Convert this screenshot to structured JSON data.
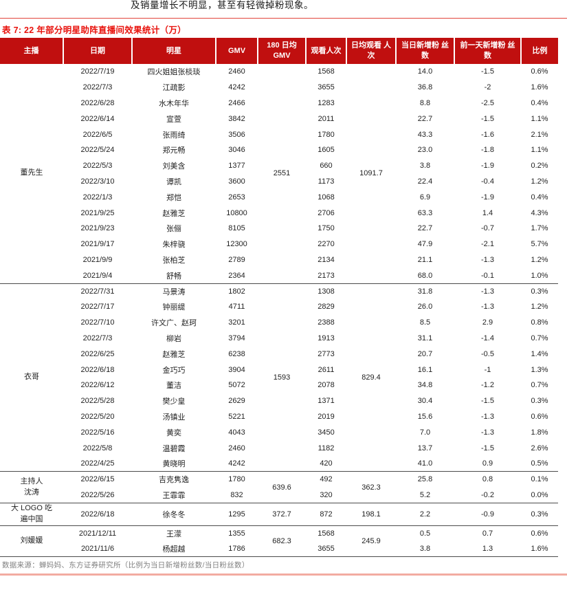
{
  "page": {
    "top_text": "及销量增长不明显，甚至有轻微掉粉现象。",
    "title": "表 7: 22 年部分明星助阵直播间效果统计（万）",
    "footer": "数据来源：蝉妈妈、东方证券研究所（比例为当日新增粉丝数/当日粉丝数）"
  },
  "colors": {
    "header_bg": "#c00f0f",
    "title_red": "#e8120c",
    "top_rule": "#e2443a",
    "bottom_rule": "#f2aba1",
    "separator": "#4a4a4a",
    "footer_gray": "#808080"
  },
  "table": {
    "columns": [
      "主播",
      "日期",
      "明星",
      "GMV",
      "180 日均 GMV",
      "观看人次",
      "日均观看 人次",
      "当日新增粉 丝数",
      "前一天新增粉 丝数",
      "比例"
    ],
    "groups": [
      {
        "host": "董先生",
        "avg_gmv_180d": "2551",
        "avg_viewers": "1091.7",
        "rows": [
          [
            "2022/7/19",
            "四火姐姐张棪琰",
            "2460",
            "1568",
            "14.0",
            "-1.5",
            "0.6%"
          ],
          [
            "2022/7/3",
            "江疏影",
            "4242",
            "3655",
            "36.8",
            "-2",
            "1.6%"
          ],
          [
            "2022/6/28",
            "水木年华",
            "2466",
            "1283",
            "8.8",
            "-2.5",
            "0.4%"
          ],
          [
            "2022/6/14",
            "宣萱",
            "3842",
            "2011",
            "22.7",
            "-1.5",
            "1.1%"
          ],
          [
            "2022/6/5",
            "张雨绮",
            "3506",
            "1780",
            "43.3",
            "-1.6",
            "2.1%"
          ],
          [
            "2022/5/24",
            "郑元畅",
            "3046",
            "1605",
            "23.0",
            "-1.8",
            "1.1%"
          ],
          [
            "2022/5/3",
            "刘美含",
            "1377",
            "660",
            "3.8",
            "-1.9",
            "0.2%"
          ],
          [
            "2022/3/10",
            "谭凯",
            "3600",
            "1173",
            "22.4",
            "-0.4",
            "1.2%"
          ],
          [
            "2022/1/3",
            "郑恺",
            "2653",
            "1068",
            "6.9",
            "-1.9",
            "0.4%"
          ],
          [
            "2021/9/25",
            "赵雅芝",
            "10800",
            "2706",
            "63.3",
            "1.4",
            "4.3%"
          ],
          [
            "2021/9/23",
            "张俪",
            "8105",
            "1750",
            "22.7",
            "-0.7",
            "1.7%"
          ],
          [
            "2021/9/17",
            "朱梓骁",
            "12300",
            "2270",
            "47.9",
            "-2.1",
            "5.7%"
          ],
          [
            "2021/9/9",
            "张柏芝",
            "2789",
            "2134",
            "21.1",
            "-1.3",
            "1.2%"
          ],
          [
            "2021/9/4",
            "舒畅",
            "2364",
            "2173",
            "68.0",
            "-0.1",
            "1.0%"
          ]
        ]
      },
      {
        "host": "衣哥",
        "avg_gmv_180d": "1593",
        "avg_viewers": "829.4",
        "rows": [
          [
            "2022/7/31",
            "马景涛",
            "1802",
            "1308",
            "31.8",
            "-1.3",
            "0.3%"
          ],
          [
            "2022/7/17",
            "钟丽缇",
            "4711",
            "2829",
            "26.0",
            "-1.3",
            "1.2%"
          ],
          [
            "2022/7/10",
            "许文广、赵珂",
            "3201",
            "2388",
            "8.5",
            "2.9",
            "0.8%"
          ],
          [
            "2022/7/3",
            "柳岩",
            "3794",
            "1913",
            "31.1",
            "-1.4",
            "0.7%"
          ],
          [
            "2022/6/25",
            "赵雅芝",
            "6238",
            "2773",
            "20.7",
            "-0.5",
            "1.4%"
          ],
          [
            "2022/6/18",
            "金巧巧",
            "3904",
            "2611",
            "16.1",
            "-1",
            "1.3%"
          ],
          [
            "2022/6/12",
            "董洁",
            "5072",
            "2078",
            "34.8",
            "-1.2",
            "0.7%"
          ],
          [
            "2022/5/28",
            "樊少皇",
            "2629",
            "1371",
            "30.4",
            "-1.5",
            "0.3%"
          ],
          [
            "2022/5/20",
            "汤镇业",
            "5221",
            "2019",
            "15.6",
            "-1.3",
            "0.6%"
          ],
          [
            "2022/5/16",
            "黄奕",
            "4043",
            "3450",
            "7.0",
            "-1.3",
            "1.8%"
          ],
          [
            "2022/5/8",
            "温碧霞",
            "2460",
            "1182",
            "13.7",
            "-1.5",
            "2.6%"
          ],
          [
            "2022/4/25",
            "黄晓明",
            "4242",
            "420",
            "41.0",
            "0.9",
            "0.5%"
          ]
        ]
      },
      {
        "host": "主持人\n沈涛",
        "avg_gmv_180d": "639.6",
        "avg_viewers": "362.3",
        "rows": [
          [
            "2022/6/15",
            "吉克隽逸",
            "1780",
            "492",
            "25.8",
            "0.8",
            "0.1%"
          ],
          [
            "2022/5/26",
            "王霏霏",
            "832",
            "320",
            "5.2",
            "-0.2",
            "0.0%"
          ]
        ]
      },
      {
        "host": "大 LOGO 吃\n遍中国",
        "avg_gmv_180d": "372.7",
        "avg_viewers": "198.1",
        "tall": true,
        "rows": [
          [
            "2022/6/18",
            "徐冬冬",
            "1295",
            "872",
            "2.2",
            "-0.9",
            "0.3%"
          ]
        ]
      },
      {
        "host": "刘媛媛",
        "avg_gmv_180d": "682.3",
        "avg_viewers": "245.9",
        "rows": [
          [
            "2021/12/11",
            "王濛",
            "1355",
            "1568",
            "0.5",
            "0.7",
            "0.6%"
          ],
          [
            "2021/11/6",
            "杨超越",
            "1786",
            "3655",
            "3.8",
            "1.3",
            "1.6%"
          ]
        ]
      }
    ]
  }
}
